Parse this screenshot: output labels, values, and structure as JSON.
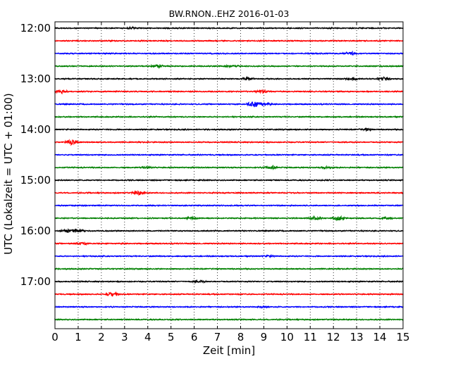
{
  "chart_data": {
    "type": "line",
    "title": "BW.RNON..EHZ 2016-01-03",
    "xlabel": "Zeit  [min]",
    "ylabel": "UTC (Lokalzeit = UTC + 01:00)",
    "xlim": [
      0,
      15
    ],
    "x_ticks": [
      "0",
      "1",
      "2",
      "3",
      "4",
      "5",
      "6",
      "7",
      "8",
      "9",
      "10",
      "11",
      "12",
      "13",
      "14",
      "15"
    ],
    "y_ticks": [
      "12:00",
      "13:00",
      "14:00",
      "15:00",
      "16:00",
      "17:00"
    ],
    "grid": "vertical dotted",
    "trace_start_utc": [
      "12:00",
      "12:15",
      "12:30",
      "12:45",
      "13:00",
      "13:15",
      "13:30",
      "13:45",
      "14:00",
      "14:15",
      "14:30",
      "14:45",
      "15:00",
      "15:15",
      "15:30",
      "15:45",
      "16:00",
      "16:15",
      "16:30",
      "16:45",
      "17:00",
      "17:15",
      "17:30",
      "17:45"
    ],
    "color_cycle": [
      "#000000",
      "#ff0000",
      "#0000ff",
      "#008000"
    ],
    "events": [
      {
        "trace": 0,
        "minute": 3.3,
        "amp": 0.6
      },
      {
        "trace": 2,
        "minute": 12.7,
        "amp": 1.6
      },
      {
        "trace": 3,
        "minute": 4.4,
        "amp": 1.4
      },
      {
        "trace": 3,
        "minute": 7.6,
        "amp": 0.6
      },
      {
        "trace": 4,
        "minute": 8.3,
        "amp": 1.2
      },
      {
        "trace": 4,
        "minute": 12.8,
        "amp": 1.1
      },
      {
        "trace": 4,
        "minute": 14.2,
        "amp": 1.1
      },
      {
        "trace": 5,
        "minute": 0.3,
        "amp": 1.2
      },
      {
        "trace": 5,
        "minute": 8.9,
        "amp": 1.0
      },
      {
        "trace": 6,
        "minute": 8.6,
        "amp": 2.8
      },
      {
        "trace": 6,
        "minute": 9.0,
        "amp": 1.4
      },
      {
        "trace": 8,
        "minute": 13.4,
        "amp": 0.9
      },
      {
        "trace": 9,
        "minute": 0.7,
        "amp": 2.0
      },
      {
        "trace": 11,
        "minute": 9.3,
        "amp": 1.6
      },
      {
        "trace": 11,
        "minute": 11.7,
        "amp": 1.0
      },
      {
        "trace": 11,
        "minute": 4.0,
        "amp": 0.6
      },
      {
        "trace": 13,
        "minute": 3.6,
        "amp": 1.8
      },
      {
        "trace": 15,
        "minute": 5.9,
        "amp": 0.8
      },
      {
        "trace": 15,
        "minute": 11.2,
        "amp": 1.2
      },
      {
        "trace": 15,
        "minute": 12.2,
        "amp": 1.8
      },
      {
        "trace": 15,
        "minute": 14.3,
        "amp": 1.2
      },
      {
        "trace": 16,
        "minute": 0.5,
        "amp": 1.2
      },
      {
        "trace": 16,
        "minute": 1.0,
        "amp": 1.2
      },
      {
        "trace": 17,
        "minute": 1.1,
        "amp": 1.0
      },
      {
        "trace": 18,
        "minute": 9.2,
        "amp": 0.6
      },
      {
        "trace": 20,
        "minute": 6.2,
        "amp": 0.6
      },
      {
        "trace": 21,
        "minute": 2.5,
        "amp": 1.8
      },
      {
        "trace": 22,
        "minute": 9.0,
        "amp": 0.6
      }
    ]
  }
}
